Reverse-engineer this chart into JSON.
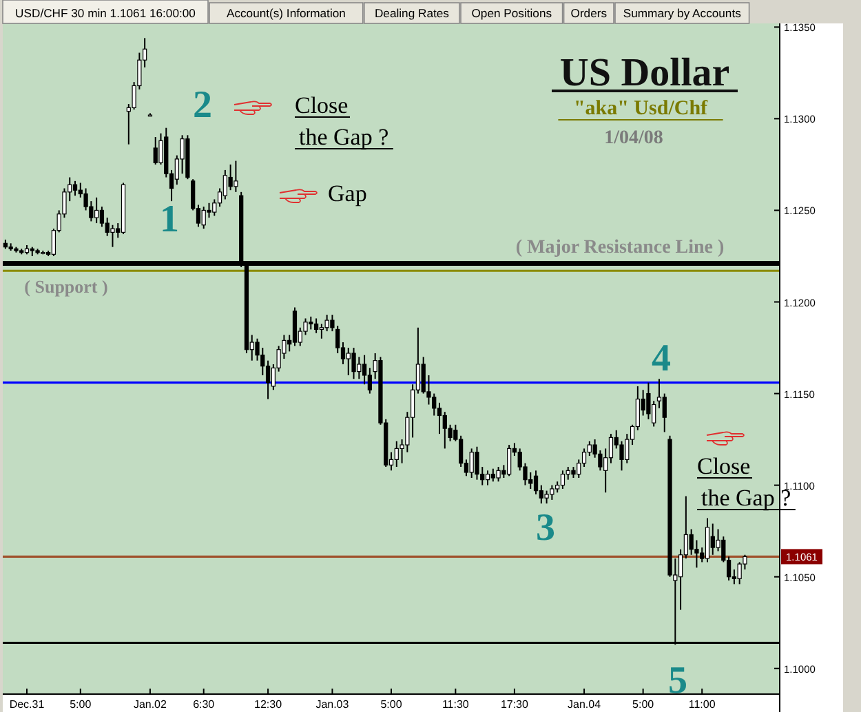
{
  "chart_data": {
    "type": "candlestick",
    "title": "US Dollar",
    "subtitle": "\"aka\" Usd/Chf",
    "color": "#000000",
    "categories": [
      null,
      null,
      null,
      null,
      "Dec.31",
      null,
      null,
      null,
      null,
      null,
      null,
      null,
      null,
      null,
      "5:00",
      null,
      null,
      null,
      null,
      null,
      null,
      null,
      null,
      null,
      null,
      null,
      null,
      "Jan.02",
      null,
      null,
      null,
      null,
      null,
      null,
      null,
      null,
      null,
      "6:30",
      null,
      null,
      null,
      null,
      null,
      null,
      null,
      null,
      null,
      null,
      null,
      "12:30",
      null,
      null,
      null,
      null,
      null,
      null,
      null,
      null,
      null,
      null,
      null,
      "Jan.03",
      null,
      null,
      null,
      null,
      null,
      null,
      null,
      null,
      null,
      null,
      "5:00",
      null,
      null,
      null,
      null,
      null,
      null,
      null,
      null,
      null,
      null,
      null,
      "11:30",
      null,
      null,
      null,
      null,
      null,
      null,
      null,
      null,
      null,
      null,
      "17:30",
      null,
      null,
      null,
      null,
      null,
      null,
      null,
      null,
      null,
      null,
      null,
      null,
      "Jan.04",
      null,
      null,
      null,
      null,
      null,
      null,
      null,
      null,
      null,
      null,
      "5:00",
      null,
      null,
      null,
      null,
      null,
      null,
      null,
      null,
      null,
      null,
      "11:00",
      null,
      null,
      null,
      null,
      null,
      null,
      null,
      null,
      null,
      null,
      null,
      null,
      null,
      null
    ],
    "ohlc": [
      [
        1.1232,
        1.1234,
        1.1229,
        1.123
      ],
      [
        1.123,
        1.1232,
        1.1228,
        1.1229
      ],
      [
        1.1229,
        1.123,
        1.1227,
        1.1228
      ],
      [
        1.1228,
        1.1229,
        1.1226,
        1.1227
      ],
      [
        1.1227,
        1.1231,
        1.1226,
        1.1229
      ],
      [
        1.1229,
        1.123,
        1.1225,
        1.1228
      ],
      [
        1.1228,
        1.1229,
        1.1226,
        1.1227
      ],
      [
        1.1227,
        1.1228,
        1.1226,
        1.1227
      ],
      [
        1.1227,
        1.1228,
        1.1225,
        1.1226
      ],
      [
        1.1226,
        1.124,
        1.1225,
        1.1239
      ],
      [
        1.1239,
        1.125,
        1.1238,
        1.1248
      ],
      [
        1.1248,
        1.1262,
        1.1246,
        1.126
      ],
      [
        1.126,
        1.1268,
        1.1255,
        1.1264
      ],
      [
        1.1264,
        1.1266,
        1.1258,
        1.1261
      ],
      [
        1.1261,
        1.1265,
        1.1257,
        1.1259
      ],
      [
        1.1259,
        1.1262,
        1.125,
        1.1252
      ],
      [
        1.1252,
        1.1255,
        1.1244,
        1.1246
      ],
      [
        1.1246,
        1.1257,
        1.1243,
        1.125
      ],
      [
        1.125,
        1.1252,
        1.1241,
        1.1243
      ],
      [
        1.1243,
        1.1246,
        1.1236,
        1.1238
      ],
      [
        1.1238,
        1.1242,
        1.123,
        1.124
      ],
      [
        1.124,
        1.1243,
        1.1235,
        1.1238
      ],
      [
        1.1238,
        1.1265,
        1.1237,
        1.1264
      ],
      [
        1.1304,
        1.1308,
        1.1286,
        1.1306
      ],
      [
        1.1306,
        1.132,
        1.1305,
        1.1318
      ],
      [
        1.1318,
        1.1336,
        1.1316,
        1.1332
      ],
      [
        1.1332,
        1.1344,
        1.1328,
        1.1338
      ],
      [
        1.1302,
        1.1303,
        1.1302,
        1.1302
      ],
      [
        1.1284,
        1.129,
        1.1275,
        1.1276
      ],
      [
        1.1276,
        1.1292,
        1.1275,
        1.1288
      ],
      [
        1.129,
        1.1295,
        1.1268,
        1.127
      ],
      [
        1.127,
        1.1272,
        1.1255,
        1.1262
      ],
      [
        1.1267,
        1.128,
        1.1264,
        1.1278
      ],
      [
        1.1278,
        1.1291,
        1.127,
        1.1289
      ],
      [
        1.1289,
        1.1291,
        1.1267,
        1.1268
      ],
      [
        1.1266,
        1.1267,
        1.125,
        1.1251
      ],
      [
        1.1251,
        1.1253,
        1.1241,
        1.1243
      ],
      [
        1.1242,
        1.1252,
        1.124,
        1.125
      ],
      [
        1.125,
        1.1254,
        1.1246,
        1.1249
      ],
      [
        1.1249,
        1.1256,
        1.1247,
        1.1254
      ],
      [
        1.1254,
        1.1262,
        1.1252,
        1.126
      ],
      [
        1.1258,
        1.1272,
        1.1256,
        1.1269
      ],
      [
        1.1268,
        1.1275,
        1.1261,
        1.1263
      ],
      [
        1.1263,
        1.1277,
        1.126,
        1.1266
      ],
      [
        1.1258,
        1.126,
        1.1219,
        1.122
      ],
      [
        1.122,
        1.1222,
        1.1172,
        1.1174
      ],
      [
        1.1174,
        1.1182,
        1.1168,
        1.1178
      ],
      [
        1.1178,
        1.118,
        1.1168,
        1.1171
      ],
      [
        1.1171,
        1.1175,
        1.116,
        1.1165
      ],
      [
        1.1165,
        1.1168,
        1.1147,
        1.1156
      ],
      [
        1.1154,
        1.1166,
        1.1152,
        1.1164
      ],
      [
        1.1164,
        1.1176,
        1.1162,
        1.1174
      ],
      [
        1.1172,
        1.1182,
        1.1169,
        1.1179
      ],
      [
        1.1179,
        1.1182,
        1.1173,
        1.1177
      ],
      [
        1.1195,
        1.1197,
        1.1176,
        1.1178
      ],
      [
        1.1178,
        1.1186,
        1.1176,
        1.1184
      ],
      [
        1.1184,
        1.1191,
        1.1182,
        1.1189
      ],
      [
        1.1189,
        1.1192,
        1.1185,
        1.1188
      ],
      [
        1.1188,
        1.1191,
        1.1183,
        1.1185
      ],
      [
        1.1185,
        1.1188,
        1.118,
        1.1186
      ],
      [
        1.1186,
        1.1193,
        1.1184,
        1.119
      ],
      [
        1.119,
        1.1193,
        1.1184,
        1.1186
      ],
      [
        1.1185,
        1.1187,
        1.1172,
        1.1175
      ],
      [
        1.1175,
        1.1178,
        1.1166,
        1.1169
      ],
      [
        1.1169,
        1.1175,
        1.116,
        1.1172
      ],
      [
        1.1172,
        1.1175,
        1.1158,
        1.1162
      ],
      [
        1.1162,
        1.117,
        1.1158,
        1.1166
      ],
      [
        1.1166,
        1.1171,
        1.1155,
        1.116
      ],
      [
        1.116,
        1.1164,
        1.115,
        1.1152
      ],
      [
        1.1162,
        1.1172,
        1.1158,
        1.1168
      ],
      [
        1.1168,
        1.117,
        1.1133,
        1.1134
      ],
      [
        1.1134,
        1.1136,
        1.111,
        1.1111
      ],
      [
        1.1111,
        1.1118,
        1.1108,
        1.1114
      ],
      [
        1.1114,
        1.1124,
        1.111,
        1.112
      ],
      [
        1.112,
        1.1125,
        1.1112,
        1.1122
      ],
      [
        1.1122,
        1.114,
        1.1118,
        1.1137
      ],
      [
        1.1137,
        1.1155,
        1.1126,
        1.1152
      ],
      [
        1.1152,
        1.1186,
        1.115,
        1.1166
      ],
      [
        1.1166,
        1.117,
        1.115,
        1.1151
      ],
      [
        1.1151,
        1.116,
        1.1144,
        1.1148
      ],
      [
        1.1148,
        1.115,
        1.1138,
        1.1142
      ],
      [
        1.1142,
        1.1145,
        1.1128,
        1.1138
      ],
      [
        1.1138,
        1.114,
        1.112,
        1.1131
      ],
      [
        1.1131,
        1.1133,
        1.1124,
        1.1126
      ],
      [
        1.113,
        1.1133,
        1.1124,
        1.1125
      ],
      [
        1.1125,
        1.1127,
        1.111,
        1.1112
      ],
      [
        1.1112,
        1.1114,
        1.1105,
        1.1107
      ],
      [
        1.1107,
        1.112,
        1.1104,
        1.1118
      ],
      [
        1.1118,
        1.1121,
        1.1103,
        1.1106
      ],
      [
        1.1106,
        1.111,
        1.11,
        1.1103
      ],
      [
        1.1103,
        1.1108,
        1.11,
        1.1106
      ],
      [
        1.1106,
        1.1109,
        1.1102,
        1.1104
      ],
      [
        1.1104,
        1.111,
        1.1102,
        1.1108
      ],
      [
        1.1108,
        1.1111,
        1.1104,
        1.1106
      ],
      [
        1.1106,
        1.1122,
        1.1105,
        1.112
      ],
      [
        1.112,
        1.1123,
        1.1116,
        1.1118
      ],
      [
        1.1118,
        1.112,
        1.1108,
        1.111
      ],
      [
        1.111,
        1.1112,
        1.11,
        1.1103
      ],
      [
        1.1103,
        1.1107,
        1.1098,
        1.1101
      ],
      [
        1.1105,
        1.1108,
        1.1095,
        1.1097
      ],
      [
        1.1097,
        1.11,
        1.109,
        1.1093
      ],
      [
        1.1093,
        1.1097,
        1.109,
        1.1095
      ],
      [
        1.1095,
        1.11,
        1.1092,
        1.1098
      ],
      [
        1.1098,
        1.1102,
        1.1096,
        1.11
      ],
      [
        1.11,
        1.1108,
        1.1098,
        1.1106
      ],
      [
        1.1106,
        1.111,
        1.1103,
        1.1108
      ],
      [
        1.1108,
        1.111,
        1.1104,
        1.1106
      ],
      [
        1.1106,
        1.1114,
        1.1104,
        1.1112
      ],
      [
        1.1112,
        1.112,
        1.111,
        1.1118
      ],
      [
        1.1118,
        1.1124,
        1.1116,
        1.1122
      ],
      [
        1.1122,
        1.1125,
        1.1115,
        1.1117
      ],
      [
        1.1117,
        1.1119,
        1.1108,
        1.111
      ],
      [
        1.1108,
        1.112,
        1.1096,
        1.1115
      ],
      [
        1.1115,
        1.1128,
        1.1112,
        1.1126
      ],
      [
        1.1126,
        1.113,
        1.112,
        1.1122
      ],
      [
        1.1122,
        1.1124,
        1.1108,
        1.1114
      ],
      [
        1.1114,
        1.1128,
        1.1112,
        1.1125
      ],
      [
        1.1125,
        1.1133,
        1.1122,
        1.1132
      ],
      [
        1.1132,
        1.1154,
        1.113,
        1.1147
      ],
      [
        1.1147,
        1.1152,
        1.1138,
        1.1141
      ],
      [
        1.115,
        1.1156,
        1.1136,
        1.1139
      ],
      [
        1.1134,
        1.1146,
        1.1132,
        1.1144
      ],
      [
        1.1146,
        1.1158,
        1.1142,
        1.1148
      ],
      [
        1.1148,
        1.115,
        1.1129,
        1.1137
      ],
      [
        1.1125,
        1.1127,
        1.105,
        1.1051
      ],
      [
        1.1048,
        1.106,
        1.1013,
        1.1051
      ],
      [
        1.105,
        1.1065,
        1.1032,
        1.1062
      ],
      [
        1.1062,
        1.1094,
        1.106,
        1.1073
      ],
      [
        1.1073,
        1.1076,
        1.1062,
        1.1065
      ],
      [
        1.1065,
        1.107,
        1.1055,
        1.1063
      ],
      [
        1.1063,
        1.1066,
        1.1058,
        1.106
      ],
      [
        1.106,
        1.1082,
        1.1058,
        1.1077
      ],
      [
        1.1072,
        1.1079,
        1.1062,
        1.1066
      ],
      [
        1.1066,
        1.1076,
        1.1064,
        1.107
      ],
      [
        1.107,
        1.1072,
        1.1058,
        1.1059
      ],
      [
        1.1059,
        1.1061,
        1.1048,
        1.105
      ],
      [
        1.105,
        1.1054,
        1.1046,
        1.1049
      ],
      [
        1.1049,
        1.1058,
        1.1046,
        1.1057
      ],
      [
        1.1057,
        1.1062,
        1.1054,
        1.1061
      ],
      null,
      null,
      null,
      null,
      null,
      null
    ],
    "ylim": [
      1.0986,
      1.1352
    ],
    "yticks": [
      {
        "value": 1.1,
        "label": "1.1000"
      },
      {
        "value": 1.105,
        "label": "1.1050"
      },
      {
        "value": 1.11,
        "label": "1.1100"
      },
      {
        "value": 1.115,
        "label": "1.1150"
      },
      {
        "value": 1.12,
        "label": "1.1200"
      },
      {
        "value": 1.125,
        "label": "1.1250"
      },
      {
        "value": 1.13,
        "label": "1.1300"
      },
      {
        "value": 1.135,
        "label": "1.1350"
      }
    ],
    "ref_lines": [
      {
        "axis": "y",
        "value": 1.1221,
        "label": "( Major Resistance Line )",
        "color": "#000000"
      },
      {
        "axis": "y",
        "value": 1.1217,
        "label": "( Support )",
        "color": "#8b8b00"
      },
      {
        "axis": "y",
        "value": 1.1156,
        "color": "#0000ff"
      },
      {
        "axis": "y",
        "value": 1.1061,
        "label": "1.1061",
        "color": "#a0522d"
      },
      {
        "axis": "y",
        "value": 1.1014,
        "color": "#000000"
      }
    ],
    "annotations": [
      "1/04/08",
      "USD/CHF 30 min 1.1061 16:00:00",
      "Account(s) Information",
      "Dealing Rates",
      "Open Positions",
      "Orders",
      "Summary by Accounts",
      "Close the Gap ?",
      "Gap",
      "1",
      "2",
      "3",
      "4",
      "5",
      "Close the Gap ?"
    ],
    "grid": false
  }
}
